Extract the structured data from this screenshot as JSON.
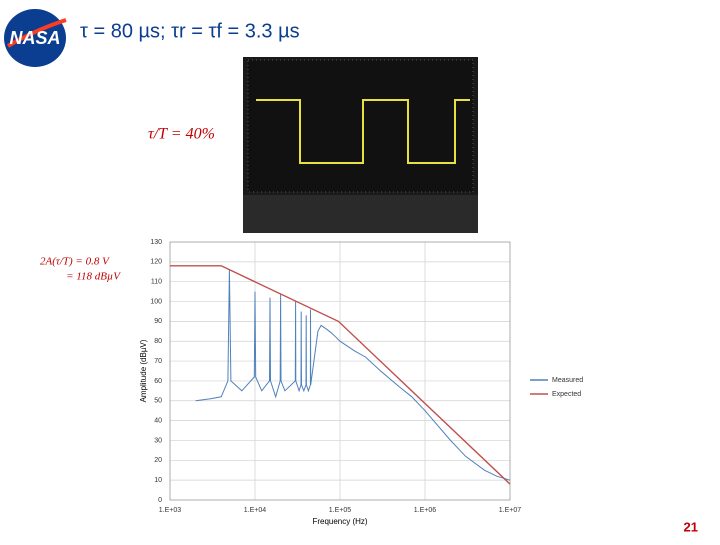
{
  "logo": "NASA",
  "chart_data": {
    "type": "line",
    "title": "τ = 80 µs; τr = τf = 3.3 µs",
    "annotations": [
      "τ/T = 40%",
      "2A(τ/T) = 0.8 V",
      "= 118 dBµV"
    ],
    "page_number": "21",
    "x_label": "Frequency (Hz)",
    "y_label": "Amplitude (dBµV)",
    "log_x": true,
    "grid": true,
    "legend": "right",
    "xlim": [
      1000,
      10000000
    ],
    "ylim": [
      0,
      130
    ],
    "xticks": [
      {
        "value": 1000,
        "label": "1.E+03"
      },
      {
        "value": 10000,
        "label": "1.E+04"
      },
      {
        "value": 100000,
        "label": "1.E+05"
      },
      {
        "value": 1000000,
        "label": "1.E+06"
      },
      {
        "value": 10000000,
        "label": "1.E+07"
      }
    ],
    "yticks": [
      0,
      10,
      20,
      30,
      40,
      50,
      60,
      70,
      80,
      90,
      100,
      110,
      120,
      130
    ],
    "series": [
      {
        "name": "Measured",
        "color": "#4f81bd",
        "x": [
          2000,
          3000,
          4000,
          4800,
          5000,
          5200,
          7000,
          9800,
          10000,
          10200,
          12000,
          14800,
          15000,
          15200,
          17500,
          19800,
          20000,
          20200,
          22500,
          29800,
          30000,
          30200,
          33000,
          34800,
          35000,
          35200,
          37500,
          39800,
          40000,
          40200,
          42500,
          44800,
          45000,
          45200,
          55000,
          60000,
          70000,
          80000,
          90000,
          100000,
          150000,
          200000,
          300000,
          500000,
          700000,
          1000000,
          2000000,
          3000000,
          5000000,
          7000000,
          10000000
        ],
        "values": [
          50,
          51,
          52,
          60,
          116,
          60,
          55,
          62,
          105,
          62,
          55,
          60,
          102,
          60,
          52,
          60,
          104,
          60,
          55,
          60,
          100,
          60,
          55,
          58,
          95,
          58,
          55,
          58,
          93,
          58,
          55,
          58,
          96,
          58,
          85,
          88,
          86,
          84,
          82,
          80,
          75,
          72,
          65,
          57,
          52,
          45,
          30,
          22,
          15,
          12,
          10
        ]
      },
      {
        "name": "Expected",
        "color": "#c0504d",
        "x": [
          1000,
          4000,
          96000,
          10000000
        ],
        "values": [
          118,
          118,
          90,
          8
        ]
      }
    ]
  }
}
